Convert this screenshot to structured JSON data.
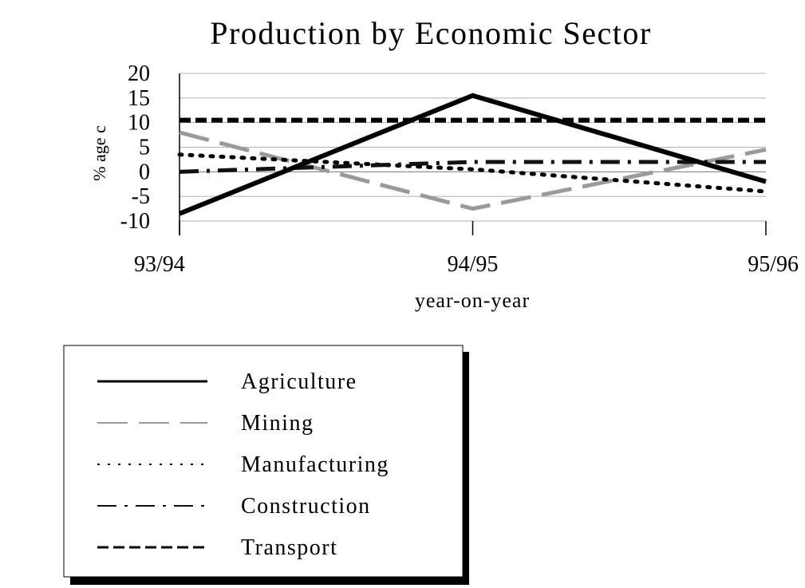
{
  "chart_data": {
    "type": "line",
    "title": "Production by Economic Sector",
    "xlabel": "year-on-year",
    "ylabel": "% age c",
    "categories": [
      "93/94",
      "94/95",
      "95/96"
    ],
    "yticks": [
      20,
      15,
      10,
      5,
      0,
      -5,
      -10
    ],
    "ylim": [
      -10,
      20
    ],
    "grid": true,
    "legend_position": "bottom-left",
    "series": [
      {
        "name": "Agriculture",
        "values": [
          -8.5,
          15.5,
          -2
        ],
        "style": "solid",
        "color": "#000000"
      },
      {
        "name": "Mining",
        "values": [
          8,
          -7.5,
          4.5
        ],
        "style": "long-dash",
        "color": "#9a9a9a"
      },
      {
        "name": "Manufacturing",
        "values": [
          3.5,
          0.5,
          -4
        ],
        "style": "dotted",
        "color": "#000000"
      },
      {
        "name": "Construction",
        "values": [
          0,
          2,
          2
        ],
        "style": "dash-dot",
        "color": "#111111"
      },
      {
        "name": "Transport",
        "values": [
          10.5,
          10.5,
          10.5
        ],
        "style": "dashed",
        "color": "#000000"
      }
    ]
  }
}
